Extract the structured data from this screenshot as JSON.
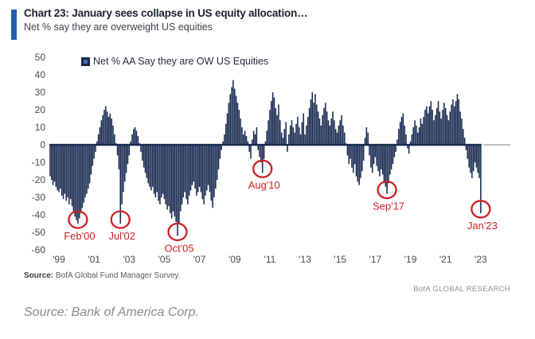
{
  "header": {
    "title": "Chart 23: January sees collapse in US equity allocation…",
    "subtitle": "Net % say they are overweight US equities"
  },
  "legend": {
    "label": "Net % AA Say they are OW US Equities"
  },
  "chart_data": {
    "type": "bar",
    "title": "Net % AA Say they are OW US Equities",
    "frequency": "monthly",
    "start_month": "1998-07",
    "end_month": "2023-01",
    "ylim": [
      -60,
      50
    ],
    "grid": "off",
    "legend_position": "top-left-inside",
    "y_ticks": [
      50,
      40,
      30,
      20,
      10,
      0,
      -10,
      -20,
      -30,
      -40,
      -50,
      -60
    ],
    "x_tick_labels": [
      "'99",
      "'01",
      "'03",
      "'05",
      "'07",
      "'09",
      "'11",
      "'13",
      "'15",
      "'17",
      "'19",
      "'21",
      "'23"
    ],
    "x_tick_month_indices": [
      6,
      30,
      54,
      78,
      102,
      126,
      150,
      174,
      198,
      222,
      246,
      270,
      294
    ],
    "values": [
      -18,
      -20,
      -23,
      -21,
      -24,
      -26,
      -27,
      -25,
      -29,
      -31,
      -28,
      -32,
      -30,
      -34,
      -31,
      -35,
      -38,
      -41,
      -43,
      -45,
      -42,
      -39,
      -36,
      -33,
      -30,
      -28,
      -25,
      -22,
      -17,
      -12,
      -8,
      -4,
      2,
      6,
      10,
      14,
      17,
      20,
      22,
      19,
      16,
      18,
      15,
      11,
      6,
      1,
      -6,
      -14,
      -45,
      -34,
      -27,
      -21,
      -16,
      -11,
      -6,
      2,
      6,
      9,
      10,
      8,
      5,
      1,
      -4,
      -9,
      -13,
      -16,
      -19,
      -22,
      -24,
      -26,
      -24,
      -28,
      -30,
      -27,
      -32,
      -34,
      -30,
      -28,
      -31,
      -34,
      -37,
      -35,
      -39,
      -42,
      -38,
      -41,
      -44,
      -52,
      -45,
      -38,
      -34,
      -30,
      -27,
      -31,
      -34,
      -29,
      -26,
      -23,
      -21,
      -25,
      -29,
      -27,
      -24,
      -27,
      -31,
      -34,
      -29,
      -26,
      -23,
      -27,
      -32,
      -36,
      -30,
      -25,
      -20,
      -14,
      -8,
      -3,
      2,
      6,
      12,
      18,
      24,
      29,
      33,
      37,
      32,
      28,
      24,
      20,
      15,
      10,
      6,
      8,
      5,
      2,
      -4,
      -8,
      3,
      8,
      6,
      10,
      -3,
      -7,
      -10,
      -16,
      -8,
      2,
      8,
      14,
      20,
      25,
      30,
      27,
      21,
      17,
      23,
      14,
      7,
      4,
      9,
      13,
      -4,
      6,
      11,
      14,
      10,
      7,
      12,
      16,
      10,
      6,
      13,
      18,
      6,
      11,
      16,
      21,
      26,
      30,
      24,
      29,
      23,
      19,
      15,
      11,
      17,
      21,
      24,
      19,
      14,
      11,
      15,
      19,
      14,
      9,
      7,
      11,
      14,
      17,
      11,
      7,
      1,
      -6,
      -11,
      -8,
      -13,
      -16,
      -11,
      -18,
      -21,
      -23,
      -19,
      -15,
      -9,
      4,
      10,
      7,
      -6,
      -13,
      -16,
      -11,
      -7,
      -12,
      -15,
      -18,
      -14,
      -17,
      -21,
      -24,
      -28,
      -22,
      -17,
      -14,
      -11,
      -7,
      -4,
      3,
      9,
      13,
      16,
      18,
      11,
      6,
      -2,
      -5,
      2,
      6,
      10,
      14,
      11,
      7,
      10,
      15,
      12,
      16,
      20,
      22,
      18,
      22,
      25,
      20,
      14,
      17,
      21,
      25,
      19,
      15,
      20,
      24,
      21,
      17,
      14,
      19,
      23,
      26,
      22,
      25,
      29,
      26,
      19,
      15,
      9,
      4,
      -3,
      -8,
      -13,
      -16,
      -19,
      -15,
      -10,
      -13,
      -16,
      -19,
      -39
    ],
    "annotations": [
      {
        "label": "Feb'00",
        "month_index": 19,
        "value": -45
      },
      {
        "label": "Jul'02",
        "month_index": 48,
        "value": -45
      },
      {
        "label": "Oct'05",
        "month_index": 87,
        "value": -52
      },
      {
        "label": "Aug'10",
        "month_index": 145,
        "value": -16
      },
      {
        "label": "Sep'17",
        "month_index": 230,
        "value": -28
      },
      {
        "label": "Jan'23",
        "month_index": 294,
        "value": -39
      }
    ]
  },
  "footer": {
    "source_label": "Source:",
    "source_text": " BofA Global Fund Manager Survey.",
    "brand": "BofA GLOBAL RESEARCH"
  },
  "caption": "Source: Bank of America Corp.",
  "colors": {
    "bar": "#182a51",
    "accent": "#1e5fa8",
    "annotation": "#cb2026",
    "axis_text": "#4a4a4a",
    "zero_line_extension": "#999999"
  }
}
